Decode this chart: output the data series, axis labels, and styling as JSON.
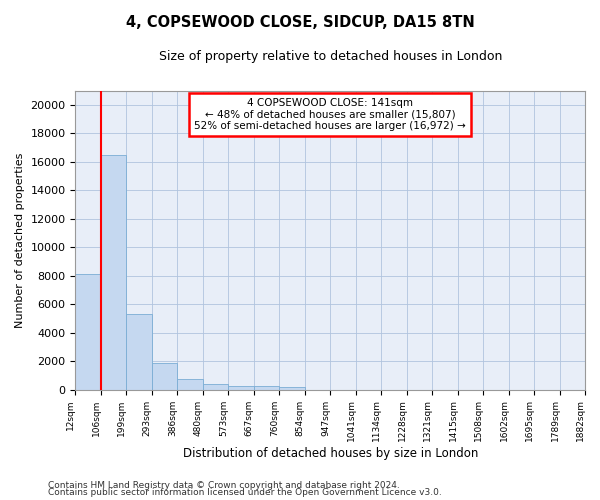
{
  "title1": "4, COPSEWOOD CLOSE, SIDCUP, DA15 8TN",
  "title2": "Size of property relative to detached houses in London",
  "xlabel": "Distribution of detached houses by size in London",
  "ylabel": "Number of detached properties",
  "bar_values": [
    8100,
    16500,
    5300,
    1850,
    750,
    370,
    280,
    220,
    175,
    0,
    0,
    0,
    0,
    0,
    0,
    0,
    0,
    0,
    0,
    0
  ],
  "bin_labels": [
    "12sqm",
    "106sqm",
    "199sqm",
    "293sqm",
    "386sqm",
    "480sqm",
    "573sqm",
    "667sqm",
    "760sqm",
    "854sqm",
    "947sqm",
    "1041sqm",
    "1134sqm",
    "1228sqm",
    "1321sqm",
    "1415sqm",
    "1508sqm",
    "1602sqm",
    "1695sqm",
    "1789sqm",
    "1882sqm"
  ],
  "bar_color": "#c5d8f0",
  "bar_edge_color": "#7aadd4",
  "red_line_bin": 1,
  "annotation_line1": "4 COPSEWOOD CLOSE: 141sqm",
  "annotation_line2": "← 48% of detached houses are smaller (15,807)",
  "annotation_line3": "52% of semi-detached houses are larger (16,972) →",
  "annotation_box_color": "white",
  "annotation_border_color": "red",
  "ylim": [
    0,
    21000
  ],
  "yticks": [
    0,
    2000,
    4000,
    6000,
    8000,
    10000,
    12000,
    14000,
    16000,
    18000,
    20000
  ],
  "grid_color": "#b0c4de",
  "bg_color": "#e8eef8",
  "footnote1": "Contains HM Land Registry data © Crown copyright and database right 2024.",
  "footnote2": "Contains public sector information licensed under the Open Government Licence v3.0."
}
